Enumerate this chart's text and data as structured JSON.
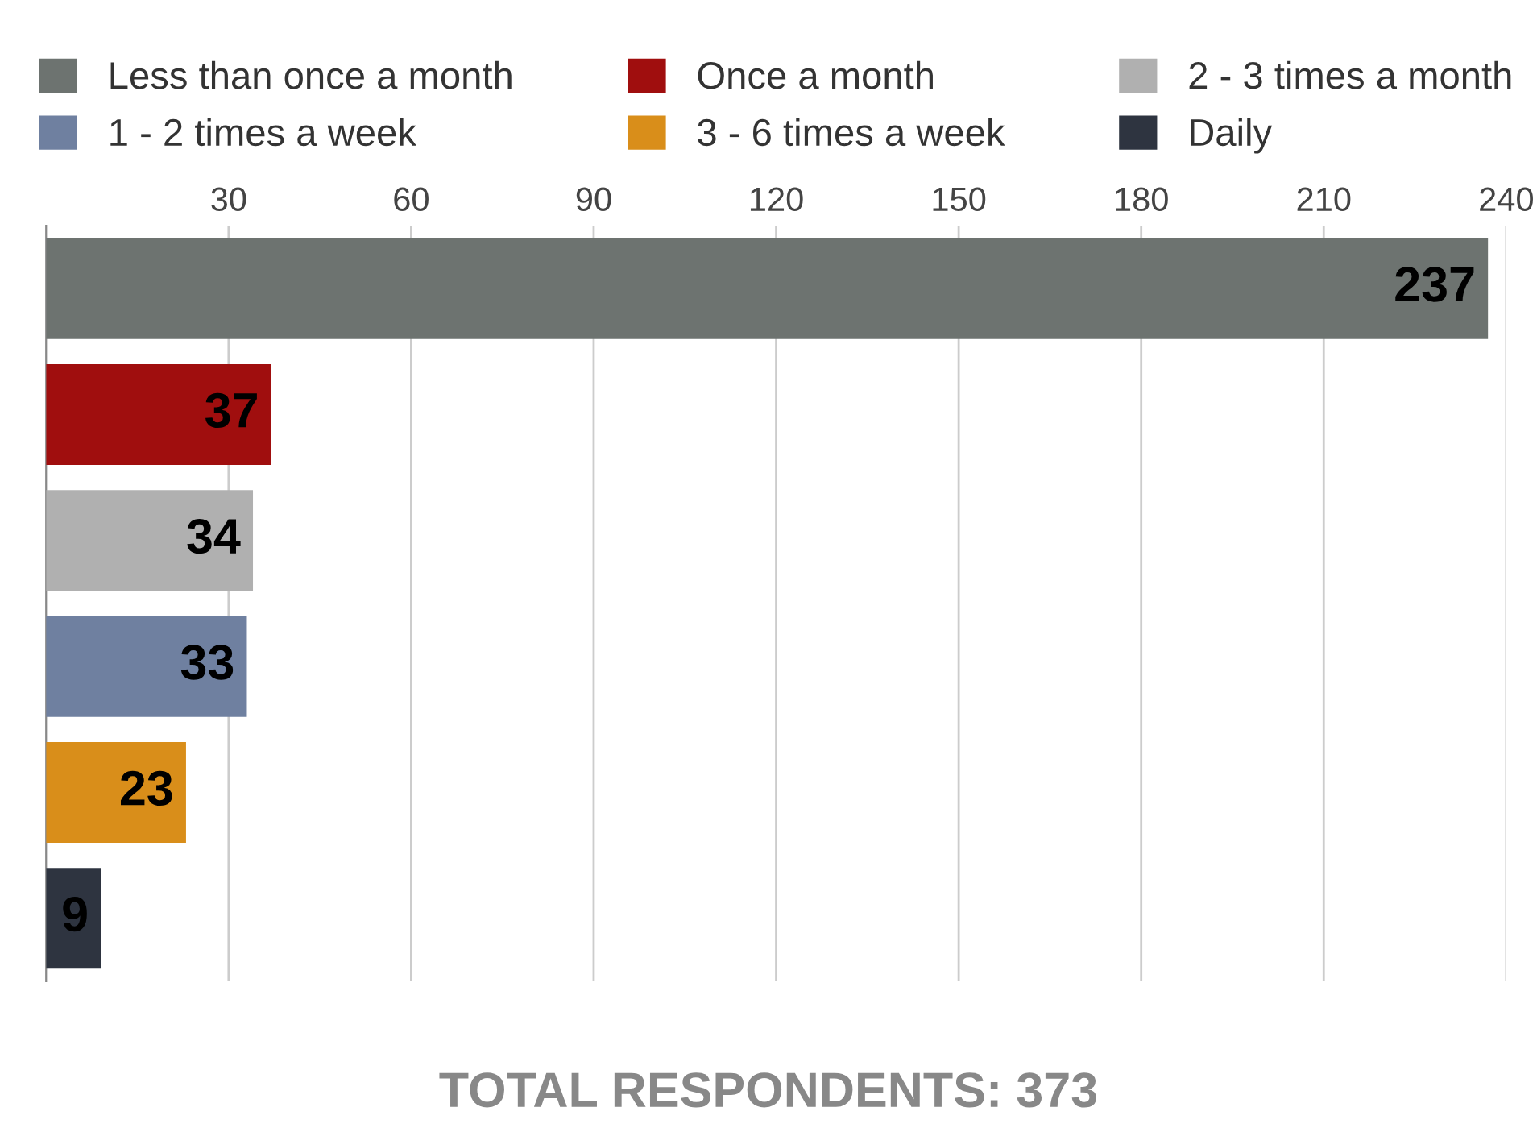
{
  "chart_data": {
    "type": "bar",
    "orientation": "horizontal",
    "categories": [
      null,
      null,
      null,
      null,
      null,
      null
    ],
    "series": [
      {
        "name": "Less than once a month",
        "color": "#6d7370",
        "values": [
          237,
          null,
          null,
          null,
          null,
          null
        ]
      },
      {
        "name": "Once a month",
        "color": "#a00e0e",
        "values": [
          null,
          37,
          null,
          null,
          null,
          null
        ]
      },
      {
        "name": "2 - 3 times a month",
        "color": "#b0b0b0",
        "values": [
          null,
          null,
          34,
          null,
          null,
          null
        ]
      },
      {
        "name": "1 - 2 times a week",
        "color": "#6f80a0",
        "values": [
          null,
          null,
          null,
          33,
          null,
          null
        ]
      },
      {
        "name": "3 - 6 times a week",
        "color": "#d98e1a",
        "values": [
          null,
          null,
          null,
          null,
          23,
          null
        ]
      },
      {
        "name": "Daily",
        "color": "#2e3440",
        "values": [
          null,
          null,
          null,
          null,
          null,
          9
        ]
      }
    ],
    "xlim": [
      0,
      240
    ],
    "xticks": [
      30,
      60,
      90,
      120,
      150,
      180,
      210,
      240
    ],
    "grid": "x",
    "legend": "top",
    "tick_labels": "x",
    "data_labels": true,
    "annotations": [
      "TOTAL RESPONDENTS: 373"
    ]
  }
}
